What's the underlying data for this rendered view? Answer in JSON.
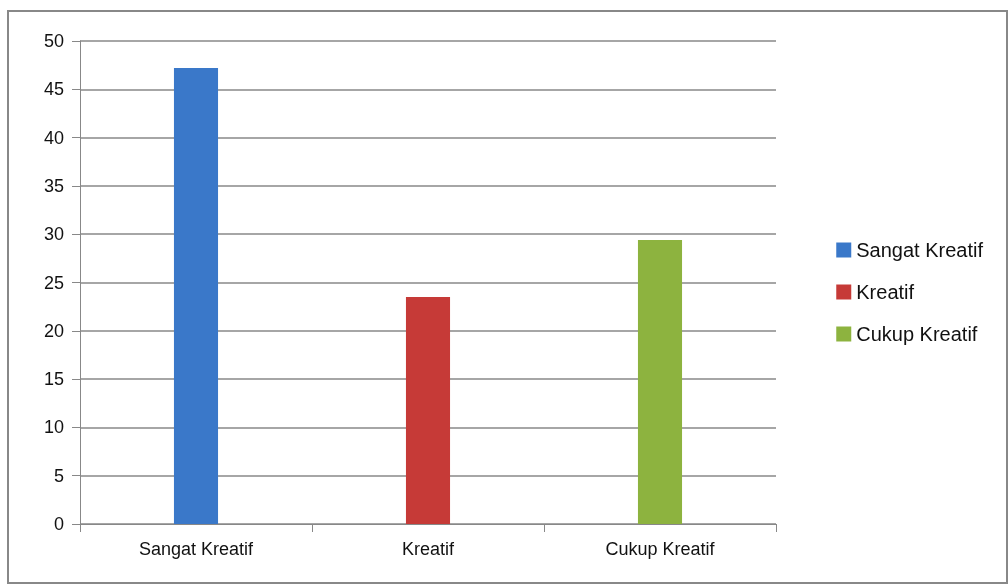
{
  "chart_data": {
    "type": "bar",
    "categories": [
      "Sangat Kreatif",
      "Kreatif",
      "Cukup Kreatif"
    ],
    "series": [
      {
        "name": "Sangat Kreatif",
        "color": "#3a78c9",
        "values": [
          47.2,
          null,
          null
        ]
      },
      {
        "name": "Kreatif",
        "color": "#c63a37",
        "values": [
          null,
          23.5,
          null
        ]
      },
      {
        "name": "Cukup Kreatif",
        "color": "#8db33f",
        "values": [
          null,
          null,
          29.4
        ]
      }
    ],
    "ylim": [
      0,
      50
    ],
    "yticks": [
      0,
      5,
      10,
      15,
      20,
      25,
      30,
      35,
      40,
      45,
      50
    ],
    "grid": "y",
    "legend": "right"
  }
}
